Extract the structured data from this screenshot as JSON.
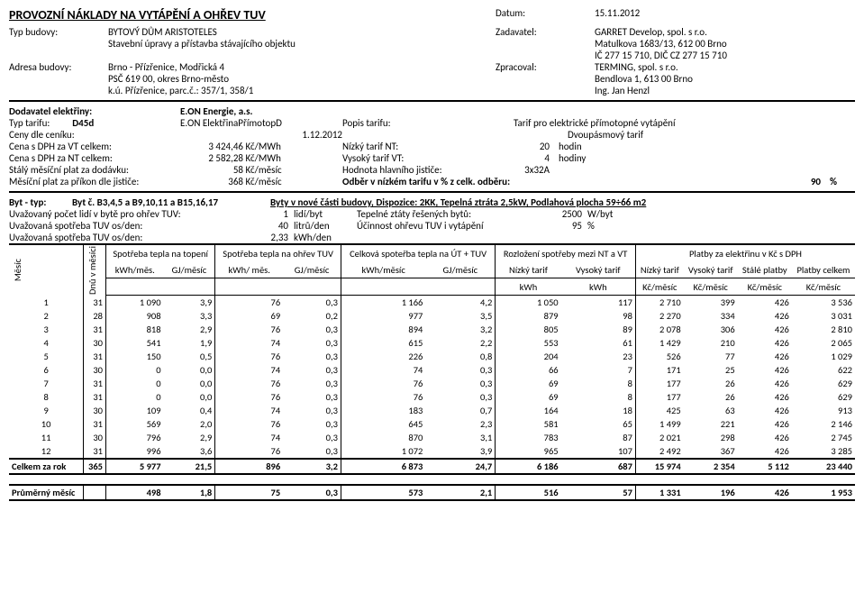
{
  "title": "PROVOZNÍ NÁKLADY NA VYTÁPĚNÍ A OHŘEV TUV",
  "header": {
    "datum_label": "Datum:",
    "datum": "15.11.2012",
    "typ_budovy_label": "Typ budovy:",
    "typ_budovy": "BYTOVÝ DŮM ARISTOTELES",
    "typ_budovy2": "Stavební úpravy a přístavba stávajícího objektu",
    "zadavatel_label": "Zadavatel:",
    "zadavatel": "GARRET Develop, spol. s r.o.",
    "zadavatel2": "Matulkova 1683/13, 612 00 Brno",
    "zadavatel3": "IČ 277 15 710, DIČ CZ 277 15 710",
    "adresa_label": "Adresa budovy:",
    "adresa1": "Brno - Přízřenice, Modřická 4",
    "adresa2": "PSČ 619 00, okres Brno-město",
    "adresa3": "k.ú. Přízřenice, parc.č.: 357/1, 358/1",
    "zprac_label": "Zpracoval:",
    "zprac1": "TERMING, spol. s r.o.",
    "zprac2": "Bendlova 1, 613 00 Brno",
    "zprac3": "Ing. Jan Henzl"
  },
  "tarif": {
    "dodavatel_l": "Dodavatel elektřiny:",
    "dodavatel": "E.ON Energie, a.s.",
    "typ_tarifu_l": "Typ tarifu:",
    "typ_tarifu_code": "D45d",
    "typ_tarifu_name": "E.ON ElektřinaPřímotopD",
    "popis_l": "Popis tarifu:",
    "popis": "Tarif pro elektrické přímotopné vytápění",
    "ceny_l": "Ceny dle ceníku:",
    "ceny": "1.12.2012",
    "ceny_pozn": "Dvoupásmový tarif",
    "cenaVT_l": "Cena s DPH za VT celkem:",
    "cenaVT": "3 424,46",
    "cenaVT_u": "Kč/MWh",
    "nizkyNT_l": "Nízký tarif NT:",
    "nizkyNT": "20",
    "nizkyNT_u": "hodin",
    "cenaNT_l": "Cena s DPH za NT celkem:",
    "cenaNT": "2 582,28",
    "cenaNT_u": "Kč/MWh",
    "vysokyVT_l": "Vysoký tarif VT:",
    "vysokyVT": "4",
    "vysokyVT_u": "hodiny",
    "staly_l": "Stálý měsíční plat za dodávku:",
    "staly": "58",
    "staly_u": "Kč/měsíc",
    "jistic_l": "Hodnota hlavního jističe:",
    "jistic": "3x32A",
    "mes_l": "Měsíční plat za příkon dle jističe:",
    "mes": "368",
    "mes_u": "Kč/měsíc",
    "odber_l": "Odběr v nízkém tarifu v % z celk. odběru:",
    "odber": "90",
    "odber_u": "%"
  },
  "byt": {
    "l": "Byt - typ:",
    "t": "Byt č. B3,4,5 a B9,10,11 a B15,16,17",
    "d": "Byty v nové části budovy, Dispozice: 2KK, Tepelná ztráta 2,5kW, Podlahová plocha 59÷66 m2",
    "u1_l": "Uvažovaný počet lidí v bytě pro ohřev TUV:",
    "u1_v": "1",
    "u1_u": "lidí/byt",
    "u1b_l": "Tepelné ztáty řešených bytů:",
    "u1b_v": "2500",
    "u1b_u": "W/byt",
    "u2_l": "Uvažovaná spotřeba TUV os/den:",
    "u2_v": "40",
    "u2_u": "litrů/den",
    "u2b_l": "Účinnost ohřevu TUV i vytápění",
    "u2b_v": "95",
    "u2b_u": "%",
    "u3_l": "Uvažovaná spotřeba TUV os/den:",
    "u3_v": "2,33",
    "u3_u": "kWh/den"
  },
  "table": {
    "h_mesic": "Měsíc",
    "h_dnu": "Dnů v měsíci",
    "h_top": "Spotřeba tepla na topení",
    "h_tuv": "Spotřeba tepla na ohřev TUV",
    "h_celk": "Celková spoteřba tepla na ÚT + TUV",
    "h_rozl": "Rozložení spotřeby mezi NT a VT",
    "h_platby": "Platby za elektřinu v Kč s DPH",
    "s_kwhmes": "kWh/měs.",
    "s_gjmes": "GJ/měsíc",
    "s_kwhmes2": "kWh/ měs.",
    "s_gjmes2": "GJ/měsíc",
    "s_kwhmes3": "kWh/měsíc",
    "s_gjmes3": "GJ/měsíc",
    "s_nt": "Nízký tarif",
    "s_vt": "Vysoký tarif",
    "s_kwh": "kWh",
    "s_nt2": "Nízký tarif",
    "s_vt2": "Vysoký tarif",
    "s_stale": "Stálé platby",
    "s_pcelk": "Platby celkem",
    "s_kcmes": "Kč/měsíc",
    "rows": [
      [
        "1",
        "31",
        "1 090",
        "3,9",
        "76",
        "0,3",
        "1 166",
        "4,2",
        "1 050",
        "117",
        "2 710",
        "399",
        "426",
        "3 536"
      ],
      [
        "2",
        "28",
        "908",
        "3,3",
        "69",
        "0,2",
        "977",
        "3,5",
        "879",
        "98",
        "2 270",
        "334",
        "426",
        "3 031"
      ],
      [
        "3",
        "31",
        "818",
        "2,9",
        "76",
        "0,3",
        "894",
        "3,2",
        "805",
        "89",
        "2 078",
        "306",
        "426",
        "2 810"
      ],
      [
        "4",
        "30",
        "541",
        "1,9",
        "74",
        "0,3",
        "615",
        "2,2",
        "553",
        "61",
        "1 429",
        "210",
        "426",
        "2 065"
      ],
      [
        "5",
        "31",
        "150",
        "0,5",
        "76",
        "0,3",
        "226",
        "0,8",
        "204",
        "23",
        "526",
        "77",
        "426",
        "1 029"
      ],
      [
        "6",
        "30",
        "0",
        "0,0",
        "74",
        "0,3",
        "74",
        "0,3",
        "66",
        "7",
        "171",
        "25",
        "426",
        "622"
      ],
      [
        "7",
        "31",
        "0",
        "0,0",
        "76",
        "0,3",
        "76",
        "0,3",
        "69",
        "8",
        "177",
        "26",
        "426",
        "629"
      ],
      [
        "8",
        "31",
        "0",
        "0,0",
        "76",
        "0,3",
        "76",
        "0,3",
        "69",
        "8",
        "177",
        "26",
        "426",
        "629"
      ],
      [
        "9",
        "30",
        "109",
        "0,4",
        "74",
        "0,3",
        "183",
        "0,7",
        "164",
        "18",
        "425",
        "63",
        "426",
        "913"
      ],
      [
        "10",
        "31",
        "569",
        "2,0",
        "76",
        "0,3",
        "645",
        "2,3",
        "581",
        "65",
        "1 499",
        "221",
        "426",
        "2 146"
      ],
      [
        "11",
        "30",
        "796",
        "2,9",
        "74",
        "0,3",
        "870",
        "3,1",
        "783",
        "87",
        "2 021",
        "298",
        "426",
        "2 745"
      ],
      [
        "12",
        "31",
        "996",
        "3,6",
        "76",
        "0,3",
        "1 072",
        "3,9",
        "965",
        "107",
        "2 492",
        "367",
        "426",
        "3 285"
      ]
    ],
    "sum_l": "Celkem za rok",
    "sum": [
      "365",
      "5 977",
      "21,5",
      "896",
      "3,2",
      "6 873",
      "24,7",
      "6 186",
      "687",
      "15 974",
      "2 354",
      "5 112",
      "23 440"
    ],
    "avg_l": "Průměrný měsíc",
    "avg": [
      "",
      "498",
      "1,8",
      "75",
      "0,3",
      "573",
      "2,1",
      "516",
      "57",
      "1 331",
      "196",
      "426",
      "1 953"
    ]
  }
}
